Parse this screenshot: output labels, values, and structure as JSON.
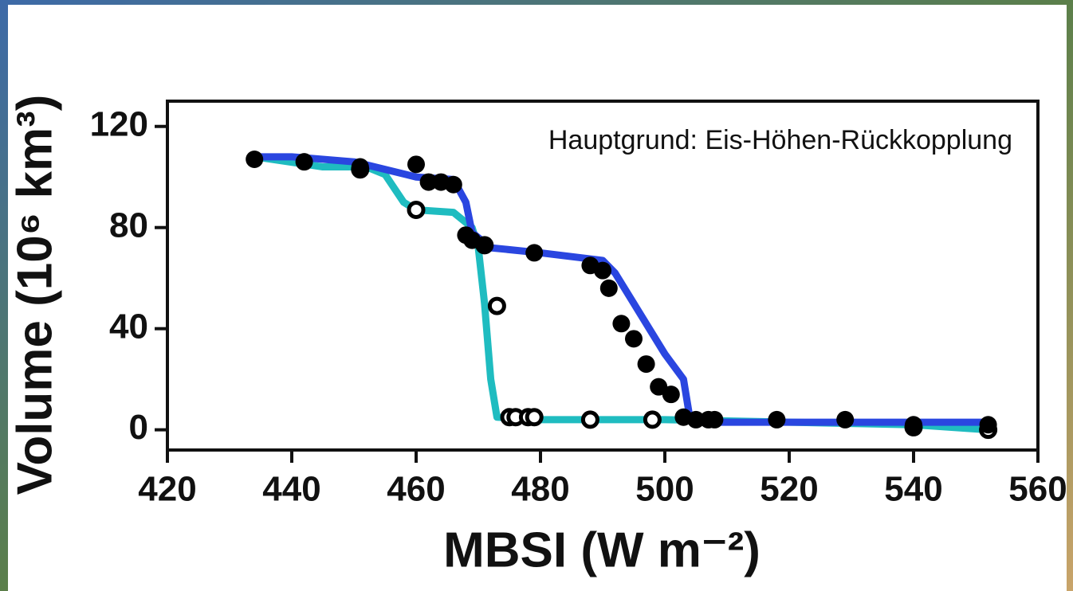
{
  "chart_data": {
    "type": "line",
    "annotation": "Hauptgrund: Eis-Höhen-Rückkopplung",
    "x_label": "MBSI (W m⁻²)",
    "y_label": "Volume (10⁶ km³)",
    "xlim": [
      420,
      560
    ],
    "xticks": [
      420,
      440,
      460,
      480,
      500,
      520,
      540,
      560
    ],
    "ylim": [
      -8,
      130
    ],
    "yticks": [
      0,
      40,
      80,
      120
    ],
    "series": [
      {
        "style": "line",
        "color": "#1fbcc0",
        "x": [
          434,
          445,
          452,
          455,
          458,
          460,
          466,
          469,
          470,
          471,
          472,
          473,
          480,
          500,
          540,
          552
        ],
        "values": [
          108,
          104,
          104,
          101,
          90,
          87,
          86,
          80,
          72,
          50,
          20,
          5,
          4,
          4,
          2,
          0
        ]
      },
      {
        "style": "line",
        "color": "#2a46e0",
        "x": [
          434,
          440,
          450,
          460,
          466,
          468,
          469,
          472,
          480,
          490,
          492,
          495,
          498,
          500,
          503,
          504,
          505,
          552
        ],
        "values": [
          108,
          108,
          106,
          100,
          99,
          90,
          78,
          72,
          70,
          67,
          62,
          50,
          38,
          30,
          20,
          5,
          3,
          3
        ]
      },
      {
        "style": "open-circle",
        "color": "#000000",
        "x": [
          451,
          460,
          471,
          473,
          475,
          476,
          478,
          479,
          488,
          498,
          540,
          552
        ],
        "values": [
          103,
          87,
          73,
          49,
          5,
          5,
          5,
          5,
          4,
          4,
          1,
          0
        ]
      },
      {
        "style": "filled-circle",
        "color": "#000000",
        "x": [
          434,
          442,
          451,
          460,
          462,
          464,
          466,
          468,
          469,
          471,
          479,
          488,
          490,
          491,
          493,
          495,
          497,
          499,
          501,
          503,
          505,
          507,
          508,
          518,
          529,
          540,
          552
        ],
        "values": [
          107,
          106,
          104,
          105,
          98,
          98,
          97,
          77,
          75,
          73,
          70,
          65,
          63,
          56,
          42,
          36,
          26,
          17,
          14,
          5,
          4,
          4,
          4,
          4,
          4,
          2,
          2
        ]
      }
    ]
  }
}
